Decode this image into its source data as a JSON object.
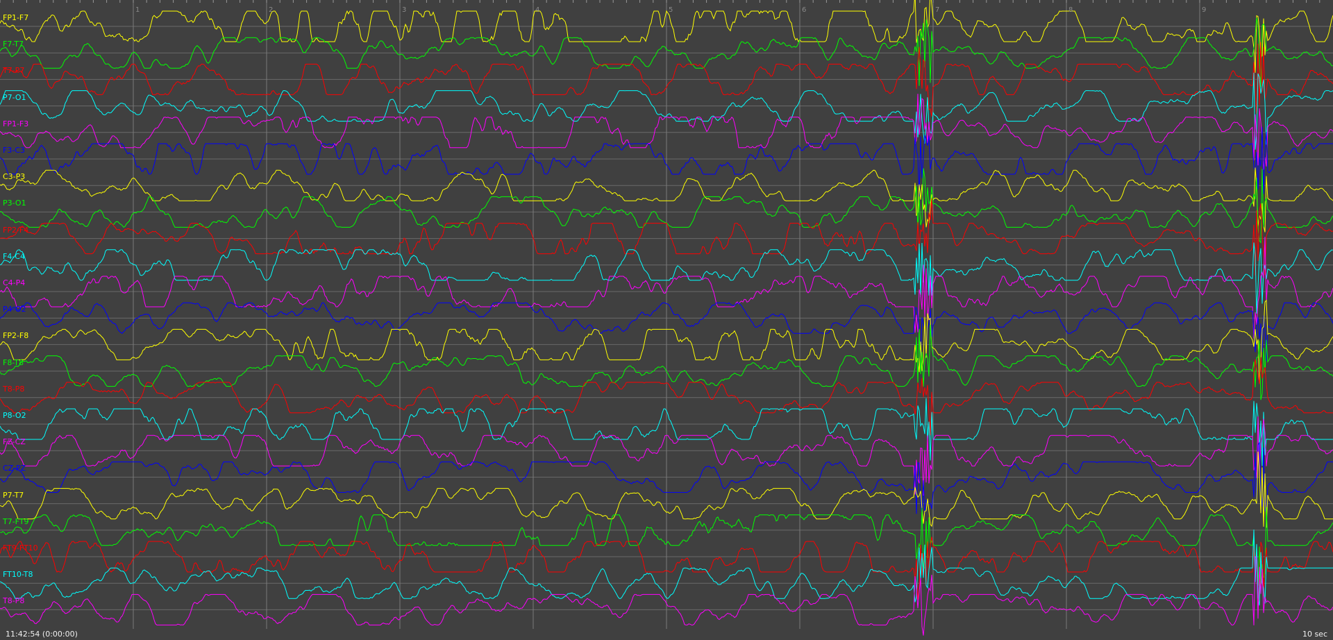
{
  "montage": {
    "channels": [
      {
        "label": "FP1-F7",
        "color": "#ffff00"
      },
      {
        "label": "F7-T7",
        "color": "#00ff00"
      },
      {
        "label": "T7-P7",
        "color": "#ff0000"
      },
      {
        "label": "P7-O1",
        "color": "#00ffff"
      },
      {
        "label": "FP1-F3",
        "color": "#ff00ff"
      },
      {
        "label": "F3-C3",
        "color": "#0000ff"
      },
      {
        "label": "C3-P3",
        "color": "#ffff00"
      },
      {
        "label": "P3-O1",
        "color": "#00ff00"
      },
      {
        "label": "FP2-F4",
        "color": "#ff0000"
      },
      {
        "label": "F4-C4",
        "color": "#00ffff"
      },
      {
        "label": "C4-P4",
        "color": "#ff00ff"
      },
      {
        "label": "P4-O2",
        "color": "#0000ff"
      },
      {
        "label": "FP2-F8",
        "color": "#ffff00"
      },
      {
        "label": "F8-T8",
        "color": "#00ff00"
      },
      {
        "label": "T8-P8",
        "color": "#ff0000"
      },
      {
        "label": "P8-O2",
        "color": "#00ffff"
      },
      {
        "label": "FZ-CZ",
        "color": "#ff00ff"
      },
      {
        "label": "CZ-PZ",
        "color": "#0000ff"
      },
      {
        "label": "P7-T7",
        "color": "#ffff00"
      },
      {
        "label": "T7-FT9",
        "color": "#00ff00"
      },
      {
        "label": "FT9-FT10",
        "color": "#ff0000"
      },
      {
        "label": "FT10-T8",
        "color": "#00ffff"
      },
      {
        "label": "T8-P8",
        "color": "#ff00ff"
      }
    ]
  },
  "time_axis": {
    "second_labels": [
      "1",
      "2",
      "3",
      "4",
      "5",
      "6",
      "7",
      "8",
      "9"
    ]
  },
  "footer": {
    "timestamp": "11:42:54 (0:00:00)",
    "window_length": "10 sec"
  }
}
